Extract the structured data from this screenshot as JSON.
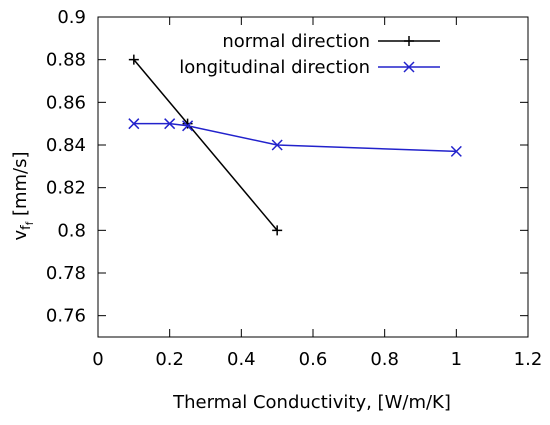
{
  "chart_data": {
    "type": "line",
    "title": "",
    "xlabel": "Thermal Conductivity, [W/m/K]",
    "ylabel": {
      "main": "v",
      "sub": "f",
      "subsub": "f",
      "unit": " [mm/s]"
    },
    "xlim": [
      0,
      1.2
    ],
    "ylim": [
      0.75,
      0.9
    ],
    "xticks": [
      "0",
      "0.2",
      "0.4",
      "0.6",
      "0.8",
      "1",
      "1.2"
    ],
    "yticks": [
      "0.76",
      "0.78",
      "0.8",
      "0.82",
      "0.84",
      "0.86",
      "0.88",
      "0.9"
    ],
    "grid": false,
    "legend_position": "top-right",
    "series": [
      {
        "name": "normal direction",
        "color": "#000000",
        "marker": "plus",
        "x": [
          0.1,
          0.25,
          0.5
        ],
        "y": [
          0.88,
          0.85,
          0.8
        ]
      },
      {
        "name": "longitudinal direction",
        "color": "#2222cc",
        "marker": "cross",
        "x": [
          0.1,
          0.2,
          0.25,
          0.5,
          1.0
        ],
        "y": [
          0.85,
          0.85,
          0.849,
          0.84,
          0.837
        ]
      }
    ]
  }
}
